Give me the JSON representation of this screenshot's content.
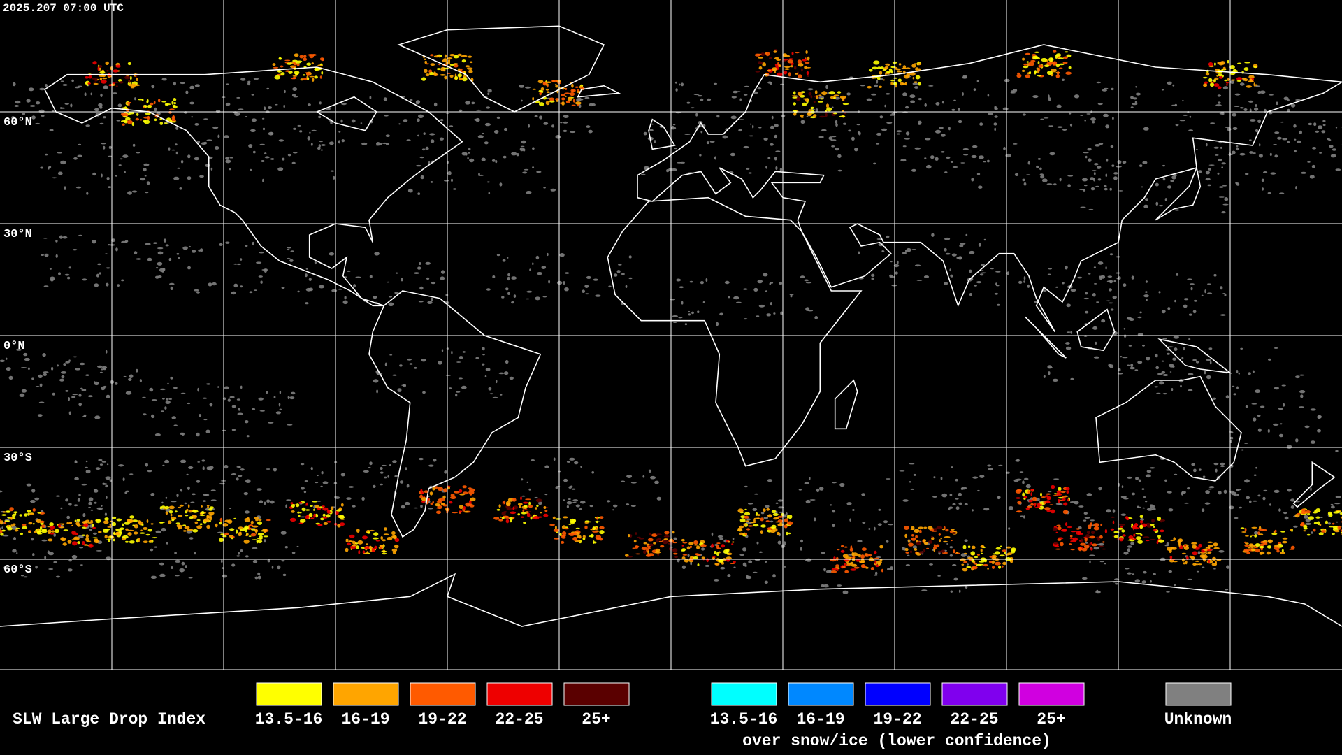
{
  "timestamp": "2025.207 07:00 UTC",
  "latitude_labels": [
    "60°N",
    "30°N",
    "0°N",
    "30°S",
    "60°S"
  ],
  "legend": {
    "title": "SLW Large Drop Index",
    "groups": [
      {
        "items": [
          {
            "label": "13.5-16",
            "color": "#ffff00"
          },
          {
            "label": "16-19",
            "color": "#ffa500"
          },
          {
            "label": "19-22",
            "color": "#ff5a00"
          },
          {
            "label": "22-25",
            "color": "#ee0000"
          },
          {
            "label": "25+",
            "color": "#5a0000"
          }
        ]
      },
      {
        "items": [
          {
            "label": "13.5-16",
            "color": "#00ffff"
          },
          {
            "label": "16-19",
            "color": "#0088ff"
          },
          {
            "label": "19-22",
            "color": "#0000ff"
          },
          {
            "label": "22-25",
            "color": "#8000ee"
          },
          {
            "label": "25+",
            "color": "#d000e0"
          }
        ],
        "note": "over snow/ice (lower confidence)"
      }
    ],
    "unknown": {
      "label": "Unknown",
      "color": "#808080"
    }
  }
}
